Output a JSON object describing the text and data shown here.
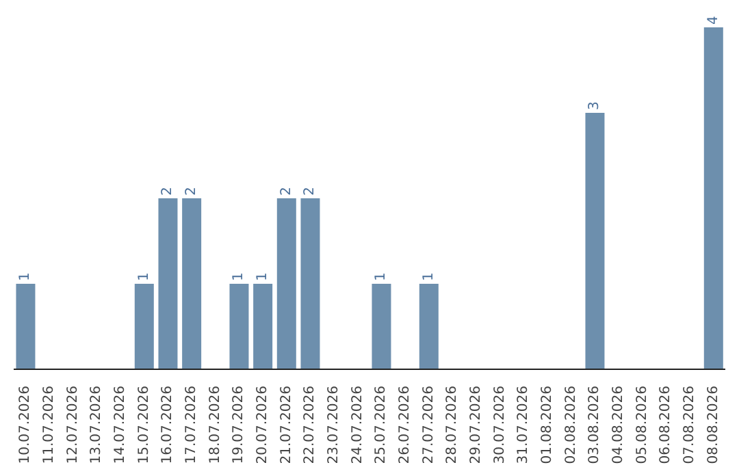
{
  "chart_data": {
    "type": "bar",
    "categories": [
      "10.07.2026",
      "11.07.2026",
      "12.07.2026",
      "13.07.2026",
      "14.07.2026",
      "15.07.2026",
      "16.07.2026",
      "17.07.2026",
      "18.07.2026",
      "19.07.2026",
      "20.07.2026",
      "21.07.2026",
      "22.07.2026",
      "23.07.2026",
      "24.07.2026",
      "25.07.2026",
      "26.07.2026",
      "27.07.2026",
      "28.07.2026",
      "29.07.2026",
      "30.07.2026",
      "31.07.2026",
      "01.08.2026",
      "02.08.2026",
      "03.08.2026",
      "04.08.2026",
      "05.08.2026",
      "06.08.2026",
      "07.08.2026",
      "08.08.2026"
    ],
    "values": [
      1,
      0,
      0,
      0,
      0,
      1,
      2,
      2,
      0,
      1,
      1,
      2,
      2,
      0,
      0,
      1,
      0,
      1,
      0,
      0,
      0,
      0,
      0,
      0,
      3,
      0,
      0,
      0,
      0,
      4
    ],
    "value_labels": [
      "1",
      null,
      null,
      null,
      null,
      "1",
      "2",
      "2",
      null,
      "1",
      "1",
      "2",
      "2",
      null,
      null,
      "1",
      null,
      "1",
      null,
      null,
      null,
      null,
      null,
      null,
      "3",
      null,
      null,
      null,
      null,
      "4"
    ],
    "color": "#6d8fad",
    "tick_labels": "x"
  }
}
